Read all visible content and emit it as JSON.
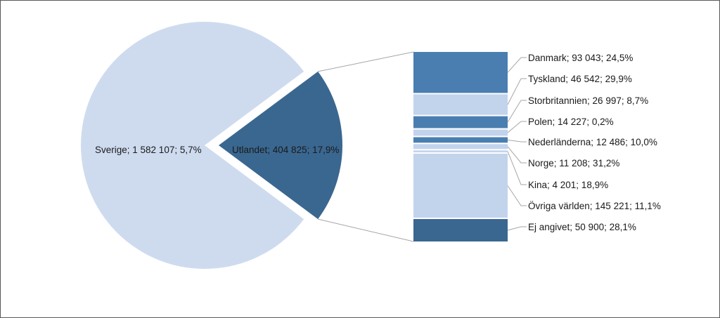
{
  "chart_data": {
    "type": "bar-of-pie",
    "title": "",
    "pie": {
      "slices": [
        {
          "label": "Sverige; 1 582 107; 5,7%",
          "name": "Sverige",
          "value": 1582107,
          "percent": 5.7,
          "color": "#cedbef"
        },
        {
          "label": "Utlandet; 404 825; 17,9%",
          "name": "Utlandet",
          "value": 404825,
          "percent": 17.9,
          "color": "#3a6790",
          "exploded": true
        }
      ]
    },
    "bar": {
      "breakdown_of": "Utlandet",
      "segments": [
        {
          "label": "Danmark; 93 043; 24,5%",
          "name": "Danmark",
          "value": 93043,
          "percent": 24.5,
          "color": "#4a7eb0"
        },
        {
          "label": "Tyskland; 46 542; 29,9%",
          "name": "Tyskland",
          "value": 46542,
          "percent": 29.9,
          "color": "#c2d3ec"
        },
        {
          "label": "Storbritannien; 26 997; 8,7%",
          "name": "Storbritannien",
          "value": 26997,
          "percent": 8.7,
          "color": "#4a7eb0"
        },
        {
          "label": "Polen; 14 227; 0,2%",
          "name": "Polen",
          "value": 14227,
          "percent": 0.2,
          "color": "#c2d3ec"
        },
        {
          "label": "Nederländerna; 12 486; 10,0%",
          "name": "Nederländerna",
          "value": 12486,
          "percent": 10.0,
          "color": "#4a7eb0"
        },
        {
          "label": "Norge; 11 208; 31,2%",
          "name": "Norge",
          "value": 11208,
          "percent": 31.2,
          "color": "#c2d3ec"
        },
        {
          "label": "Kina; 4 201; 18,9%",
          "name": "Kina",
          "value": 4201,
          "percent": 18.9,
          "color": "#c2d3ec"
        },
        {
          "label": "Övriga världen; 145 221; 11,1%",
          "name": "Övriga världen",
          "value": 145221,
          "percent": 11.1,
          "color": "#c2d3ec"
        },
        {
          "label": "Ej angivet; 50 900; 28,1%",
          "name": "Ej angivet",
          "value": 50900,
          "percent": 28.1,
          "color": "#3a6790"
        }
      ]
    },
    "legend": "none",
    "grid": false,
    "colors": {
      "pie_main": "#cedbef",
      "pie_exploded": "#3a6790",
      "bar_dark": "#4a7eb0",
      "bar_light": "#c2d3ec",
      "leader_line": "#a6a6a6",
      "frame_border": "#595959"
    }
  }
}
